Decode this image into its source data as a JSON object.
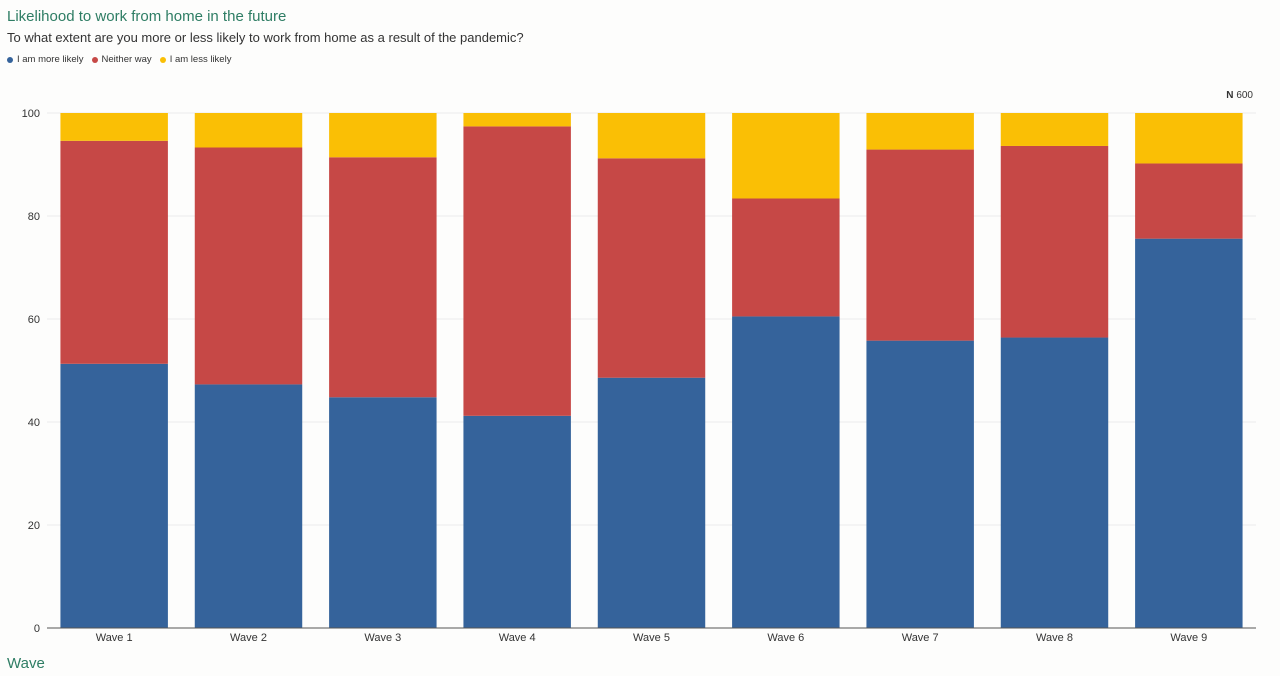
{
  "chart_data": {
    "type": "bar",
    "stacked": true,
    "title": "Likelihood to work from home in the future",
    "subtitle": "To what extent are you more or less likely to work from home as a result of the pandemic?",
    "xlabel": "Wave",
    "ylabel": "",
    "n_label": "N",
    "n_value": "600",
    "ylim": [
      0,
      100
    ],
    "yticks": [
      "0",
      "20",
      "40",
      "60",
      "80",
      "100"
    ],
    "grid": true,
    "legend_position": "top-left",
    "categories": [
      "Wave 1",
      "Wave 2",
      "Wave 3",
      "Wave 4",
      "Wave 5",
      "Wave 6",
      "Wave 7",
      "Wave 8",
      "Wave 9"
    ],
    "series": [
      {
        "name": "I am more likely",
        "color": "#35639b",
        "values": [
          51.3,
          47.3,
          44.8,
          41.2,
          48.6,
          60.5,
          55.8,
          56.4,
          75.6
        ]
      },
      {
        "name": "Neither way",
        "color": "#c64846",
        "values": [
          43.3,
          46.0,
          46.6,
          56.2,
          42.6,
          22.9,
          37.1,
          37.2,
          14.6
        ]
      },
      {
        "name": "I am less likely",
        "color": "#fabf05",
        "values": [
          5.4,
          6.7,
          8.6,
          2.6,
          8.8,
          16.6,
          7.1,
          6.4,
          9.8
        ]
      }
    ]
  }
}
